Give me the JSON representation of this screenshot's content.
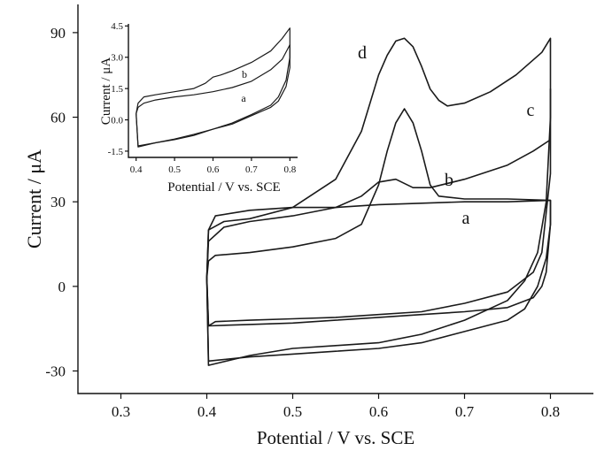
{
  "chart_data": [
    {
      "type": "line",
      "xlabel": "Potential / V vs. SCE",
      "ylabel": "Current / μA",
      "xlim": [
        0.25,
        0.85
      ],
      "ylim": [
        -38,
        100
      ],
      "xticks": [
        "0.3",
        "0.4",
        "0.5",
        "0.6",
        "0.7",
        "0.8"
      ],
      "yticks": [
        "-30",
        "0",
        "30",
        "60",
        "90"
      ],
      "curve_labels": [
        "a",
        "b",
        "c",
        "d"
      ],
      "series": [
        {
          "name": "a",
          "forward": [
            [
              0.4,
              3
            ],
            [
              0.402,
              20
            ],
            [
              0.41,
              25
            ],
            [
              0.45,
              27
            ],
            [
              0.5,
              28
            ],
            [
              0.55,
              28
            ],
            [
              0.6,
              29
            ],
            [
              0.65,
              29.5
            ],
            [
              0.7,
              30
            ],
            [
              0.75,
              30
            ],
            [
              0.8,
              30.5
            ]
          ],
          "reverse": [
            [
              0.8,
              30.5
            ],
            [
              0.8,
              22
            ],
            [
              0.795,
              5
            ],
            [
              0.79,
              0
            ],
            [
              0.78,
              -4
            ],
            [
              0.75,
              -7.5
            ],
            [
              0.7,
              -9
            ],
            [
              0.65,
              -10
            ],
            [
              0.6,
              -11
            ],
            [
              0.55,
              -12
            ],
            [
              0.5,
              -13
            ],
            [
              0.45,
              -13.5
            ],
            [
              0.402,
              -14
            ],
            [
              0.4,
              3
            ]
          ]
        },
        {
          "name": "b",
          "forward": [
            [
              0.4,
              3
            ],
            [
              0.402,
              16
            ],
            [
              0.42,
              21
            ],
            [
              0.45,
              23
            ],
            [
              0.5,
              25
            ],
            [
              0.55,
              28
            ],
            [
              0.58,
              32
            ],
            [
              0.6,
              37
            ],
            [
              0.62,
              38
            ],
            [
              0.64,
              35
            ],
            [
              0.66,
              35
            ],
            [
              0.7,
              38
            ],
            [
              0.75,
              43
            ],
            [
              0.78,
              48
            ],
            [
              0.8,
              52
            ],
            [
              0.8,
              70
            ]
          ],
          "reverse": [
            [
              0.8,
              70
            ],
            [
              0.8,
              40
            ],
            [
              0.79,
              12
            ],
            [
              0.78,
              5
            ],
            [
              0.75,
              -2
            ],
            [
              0.7,
              -6
            ],
            [
              0.65,
              -9
            ],
            [
              0.6,
              -10
            ],
            [
              0.55,
              -11
            ],
            [
              0.5,
              -11.5
            ],
            [
              0.45,
              -12
            ],
            [
              0.41,
              -12.5
            ],
            [
              0.402,
              -14
            ],
            [
              0.4,
              3
            ]
          ]
        },
        {
          "name": "c",
          "forward": [
            [
              0.4,
              3
            ],
            [
              0.402,
              9
            ],
            [
              0.41,
              11
            ],
            [
              0.45,
              12
            ],
            [
              0.5,
              14
            ],
            [
              0.55,
              17
            ],
            [
              0.58,
              22
            ],
            [
              0.6,
              36
            ],
            [
              0.61,
              48
            ],
            [
              0.62,
              58
            ],
            [
              0.63,
              63
            ],
            [
              0.64,
              58
            ],
            [
              0.65,
              48
            ],
            [
              0.66,
              36
            ],
            [
              0.67,
              32
            ],
            [
              0.7,
              31
            ],
            [
              0.75,
              31
            ],
            [
              0.8,
              30.5
            ]
          ],
          "reverse": [
            [
              0.8,
              30.5
            ],
            [
              0.8,
              22
            ],
            [
              0.795,
              10
            ],
            [
              0.785,
              0
            ],
            [
              0.77,
              -8
            ],
            [
              0.75,
              -12
            ],
            [
              0.7,
              -16
            ],
            [
              0.65,
              -20
            ],
            [
              0.6,
              -22
            ],
            [
              0.55,
              -23
            ],
            [
              0.5,
              -24
            ],
            [
              0.45,
              -25
            ],
            [
              0.402,
              -26.5
            ],
            [
              0.4,
              3
            ]
          ]
        },
        {
          "name": "d",
          "forward": [
            [
              0.4,
              3
            ],
            [
              0.402,
              20
            ],
            [
              0.42,
              23
            ],
            [
              0.45,
              24
            ],
            [
              0.5,
              28
            ],
            [
              0.55,
              38
            ],
            [
              0.58,
              55
            ],
            [
              0.6,
              75
            ],
            [
              0.61,
              82
            ],
            [
              0.62,
              87
            ],
            [
              0.63,
              88
            ],
            [
              0.64,
              85
            ],
            [
              0.65,
              78
            ],
            [
              0.66,
              70
            ],
            [
              0.67,
              66
            ],
            [
              0.68,
              64
            ],
            [
              0.7,
              65
            ],
            [
              0.73,
              69
            ],
            [
              0.76,
              75
            ],
            [
              0.79,
              83
            ],
            [
              0.8,
              88
            ]
          ],
          "reverse": [
            [
              0.8,
              88
            ],
            [
              0.8,
              60
            ],
            [
              0.795,
              30
            ],
            [
              0.785,
              12
            ],
            [
              0.77,
              2
            ],
            [
              0.75,
              -5
            ],
            [
              0.7,
              -12
            ],
            [
              0.65,
              -17
            ],
            [
              0.6,
              -20
            ],
            [
              0.55,
              -21
            ],
            [
              0.5,
              -22
            ],
            [
              0.45,
              -24.5
            ],
            [
              0.402,
              -28
            ],
            [
              0.4,
              3
            ]
          ]
        }
      ]
    },
    {
      "type": "line",
      "role": "inset",
      "xlabel": "Potential / V vs. SCE",
      "ylabel": "Current / μA",
      "xlim": [
        0.38,
        0.82
      ],
      "ylim": [
        -1.8,
        4.6
      ],
      "xticks": [
        "0.4",
        "0.5",
        "0.6",
        "0.7",
        "0.8"
      ],
      "yticks": [
        "-1.5",
        "0.0",
        "1.5",
        "3.0",
        "4.5"
      ],
      "curve_labels": [
        "a",
        "b"
      ],
      "series": [
        {
          "name": "a",
          "forward": [
            [
              0.4,
              0.3
            ],
            [
              0.405,
              0.6
            ],
            [
              0.42,
              0.8
            ],
            [
              0.45,
              0.95
            ],
            [
              0.5,
              1.1
            ],
            [
              0.55,
              1.2
            ],
            [
              0.6,
              1.35
            ],
            [
              0.65,
              1.55
            ],
            [
              0.7,
              1.85
            ],
            [
              0.75,
              2.4
            ],
            [
              0.78,
              2.9
            ],
            [
              0.8,
              3.6
            ]
          ],
          "reverse": [
            [
              0.8,
              3.6
            ],
            [
              0.8,
              2.5
            ],
            [
              0.79,
              1.6
            ],
            [
              0.77,
              0.9
            ],
            [
              0.75,
              0.6
            ],
            [
              0.7,
              0.2
            ],
            [
              0.65,
              -0.2
            ],
            [
              0.6,
              -0.45
            ],
            [
              0.55,
              -0.75
            ],
            [
              0.5,
              -0.95
            ],
            [
              0.45,
              -1.1
            ],
            [
              0.405,
              -1.25
            ],
            [
              0.4,
              0.3
            ]
          ]
        },
        {
          "name": "b",
          "forward": [
            [
              0.4,
              0.3
            ],
            [
              0.405,
              0.8
            ],
            [
              0.42,
              1.1
            ],
            [
              0.45,
              1.2
            ],
            [
              0.5,
              1.35
            ],
            [
              0.55,
              1.5
            ],
            [
              0.58,
              1.75
            ],
            [
              0.6,
              2.05
            ],
            [
              0.62,
              2.15
            ],
            [
              0.65,
              2.35
            ],
            [
              0.7,
              2.75
            ],
            [
              0.75,
              3.3
            ],
            [
              0.78,
              3.9
            ],
            [
              0.8,
              4.4
            ]
          ],
          "reverse": [
            [
              0.8,
              4.4
            ],
            [
              0.8,
              3.0
            ],
            [
              0.79,
              1.9
            ],
            [
              0.77,
              1.1
            ],
            [
              0.75,
              0.7
            ],
            [
              0.7,
              0.25
            ],
            [
              0.65,
              -0.15
            ],
            [
              0.6,
              -0.45
            ],
            [
              0.55,
              -0.7
            ],
            [
              0.5,
              -0.92
            ],
            [
              0.45,
              -1.1
            ],
            [
              0.405,
              -1.3
            ],
            [
              0.4,
              0.3
            ]
          ]
        }
      ]
    }
  ]
}
